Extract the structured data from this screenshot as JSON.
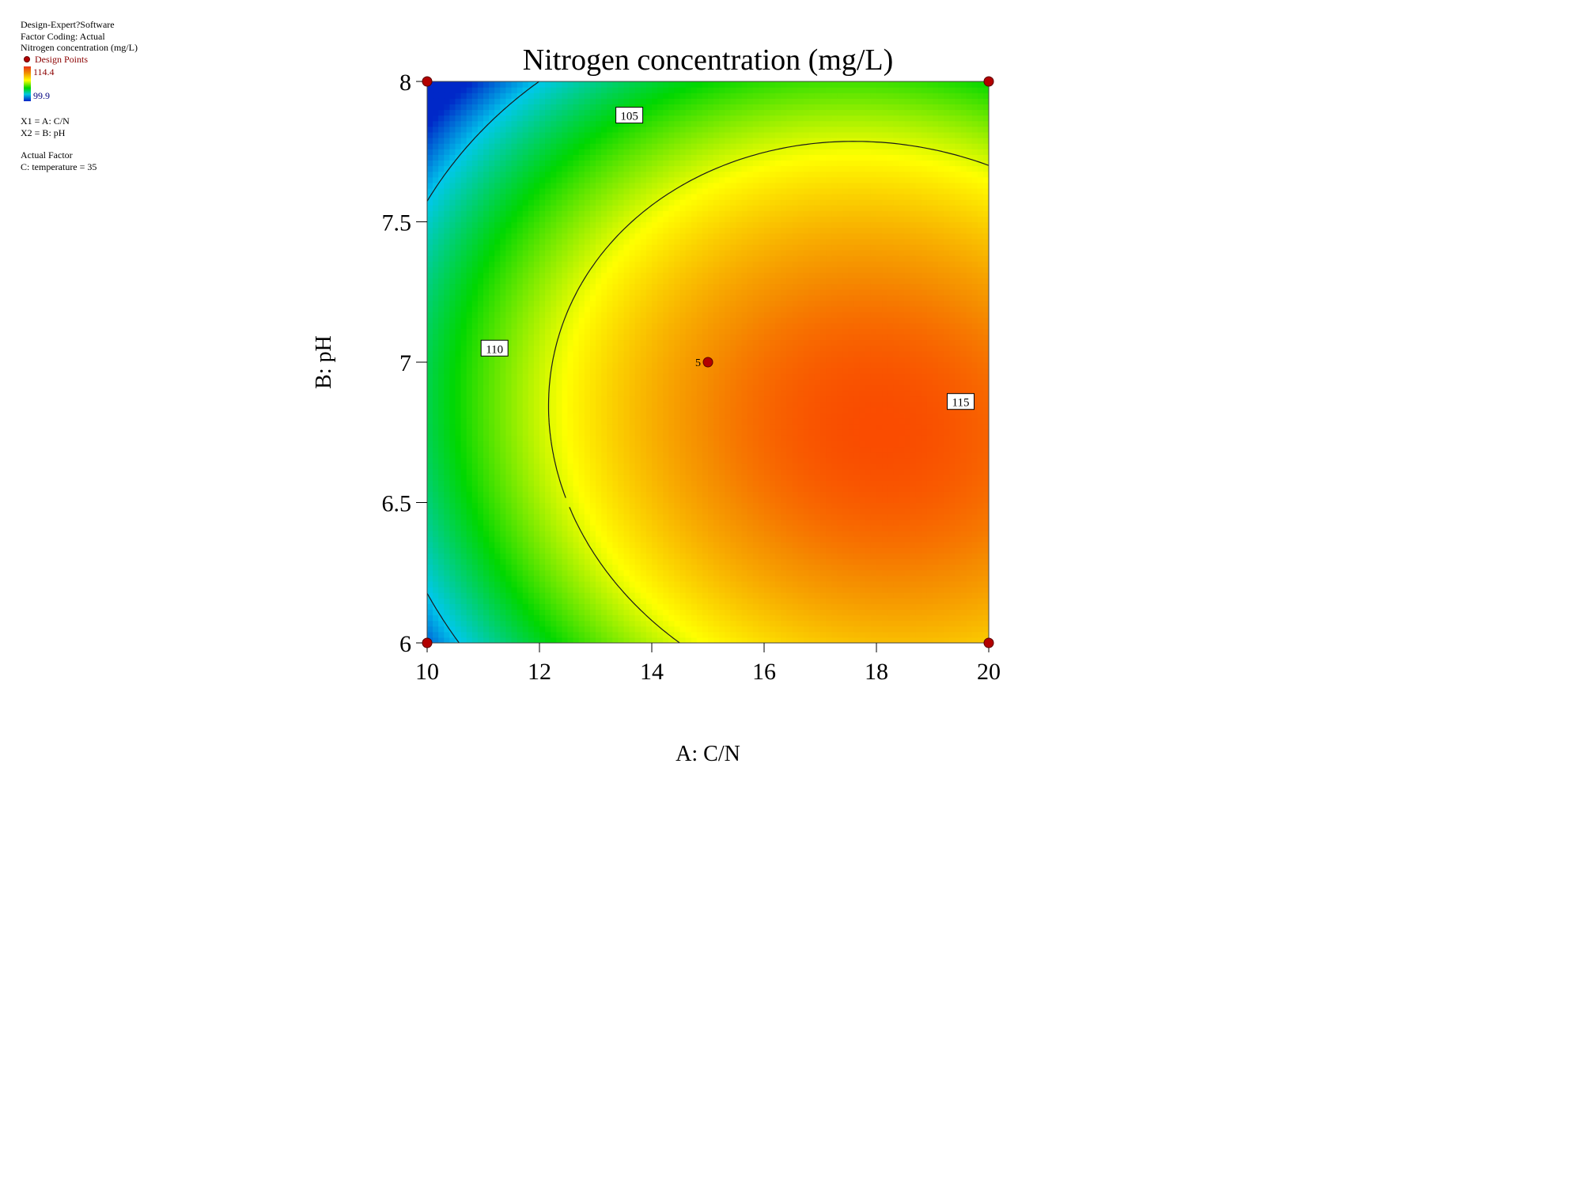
{
  "legend": {
    "software": "Design-Expert?Software",
    "factor_coding": "Factor Coding: Actual",
    "response": "Nitrogen concentration (mg/L)",
    "design_points": "Design Points",
    "scale_max": "114.4",
    "scale_min": "99.9",
    "x1": "X1 = A: C/N",
    "x2": "X2 = B: pH",
    "actual_factor_heading": "Actual Factor",
    "actual_factor": "C: temperature = 35"
  },
  "colors": {
    "design_point": "#b30000",
    "contour_line": "#1a1a1a",
    "scale": [
      "#0020c8",
      "#00c8e0",
      "#00d700",
      "#ffff00",
      "#f08a00",
      "#ff0000"
    ]
  },
  "chart_data": {
    "type": "heatmap",
    "subtype": "contour",
    "title": "Nitrogen concentration (mg/L)",
    "xlabel": "A: C/N",
    "ylabel": "B: pH",
    "xlim": [
      10,
      20
    ],
    "ylim": [
      6,
      8
    ],
    "xticks": [
      "10",
      "12",
      "14",
      "16",
      "18",
      "20"
    ],
    "yticks": [
      "6",
      "6.5",
      "7",
      "7.5",
      "8"
    ],
    "color_range": [
      99.9,
      114.4
    ],
    "contour_levels": [
      {
        "label": "105",
        "value": 105
      },
      {
        "label": "110",
        "value": 110
      },
      {
        "label": "115",
        "value": 115
      }
    ],
    "contour_label_positions": [
      {
        "label": "105",
        "x": 13.6,
        "y": 7.88
      },
      {
        "label": "110",
        "x": 11.2,
        "y": 7.05
      },
      {
        "label": "115",
        "x": 19.5,
        "y": 6.86
      }
    ],
    "design_points": [
      {
        "x": 10,
        "y": 8,
        "label": ""
      },
      {
        "x": 20,
        "y": 8,
        "label": ""
      },
      {
        "x": 15,
        "y": 7,
        "label": "5"
      },
      {
        "x": 10,
        "y": 6,
        "label": ""
      },
      {
        "x": 20,
        "y": 6,
        "label": ""
      }
    ]
  }
}
